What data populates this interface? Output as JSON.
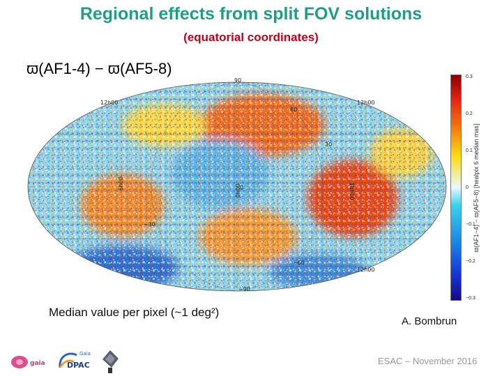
{
  "slide": {
    "title": "Regional effects from split FOV solutions",
    "subtitle": "(equatorial coordinates)",
    "formula": "ϖ(AF1-4) − ϖ(AF5-8)",
    "caption": "Median value per pixel (~1 deg²)",
    "author": "A. Bombrun",
    "footer": "ESAC – November 2016"
  },
  "map": {
    "grid_labels": [
      "90",
      "60",
      "30",
      "0",
      "−30",
      "−60",
      "−90",
      "12h00",
      "12h00",
      "12h00",
      "6h00",
      "18h00",
      "0h00"
    ]
  },
  "colorbar": {
    "ticks": [
      "0.3",
      "0.2",
      "0.1",
      "0",
      "−0.1",
      "−0.2",
      "−0.3"
    ],
    "label": "ϖ(AF1−4) − ϖ(AF5−8) [healpix 6 median mas]"
  },
  "logos": {
    "gaia": "gaia",
    "dpac": "DPAC",
    "dpac_small": "Gaia"
  },
  "colors": {
    "title": "#1f9e86",
    "subtitle": "#c0001d"
  }
}
